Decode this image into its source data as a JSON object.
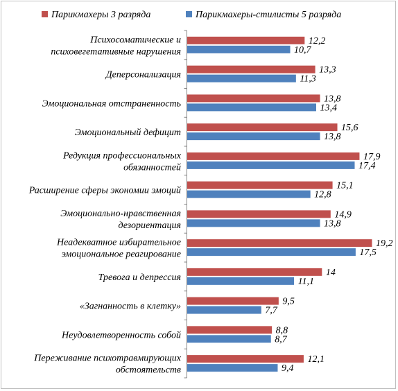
{
  "chart_data": {
    "type": "bar",
    "orientation": "horizontal",
    "categories": [
      [
        "Психосоматические и",
        "психовегетативные нарушения"
      ],
      [
        "Деперсонализация"
      ],
      [
        "Эмоциональная отстраненность"
      ],
      [
        "Эмоциональный дефицит"
      ],
      [
        "Редукция профессиональных",
        "обязанностей"
      ],
      [
        "Расширение сферы экономии эмоций"
      ],
      [
        "Эмоционально-нравственная",
        "дезориентация"
      ],
      [
        "Неадекватное избирательное",
        "эмоциональное реагирование"
      ],
      [
        "Тревога и депрессия"
      ],
      [
        "«Загнанность в клетку»"
      ],
      [
        "Неудовлетворенность собой"
      ],
      [
        "Переживание психотравмирующих",
        "обстоятельств"
      ]
    ],
    "series": [
      {
        "name": "Парикмахеры 3 разряда",
        "color": "#c0504d",
        "values": [
          12.2,
          13.3,
          13.8,
          15.6,
          17.9,
          15.1,
          14.9,
          19.2,
          14,
          9.5,
          8.8,
          12.1
        ],
        "labels": [
          "12,2",
          "13,3",
          "13,8",
          "15,6",
          "17,9",
          "15,1",
          "14,9",
          "19,2",
          "14",
          "9,5",
          "8,8",
          "12,1"
        ]
      },
      {
        "name": "Парикмахеры-стилисты 5 разряда",
        "color": "#4f81bd",
        "values": [
          10.7,
          11.3,
          13.4,
          13.8,
          17.4,
          12.8,
          13.8,
          17.5,
          11.1,
          7.7,
          8.7,
          9.4
        ],
        "labels": [
          "10,7",
          "11,3",
          "13,4",
          "13,8",
          "17,4",
          "12,8",
          "13,8",
          "17,5",
          "11,1",
          "7,7",
          "8,7",
          "9,4"
        ]
      }
    ],
    "xlim": [
      0,
      20
    ],
    "grid": false,
    "legend_position": "top"
  }
}
